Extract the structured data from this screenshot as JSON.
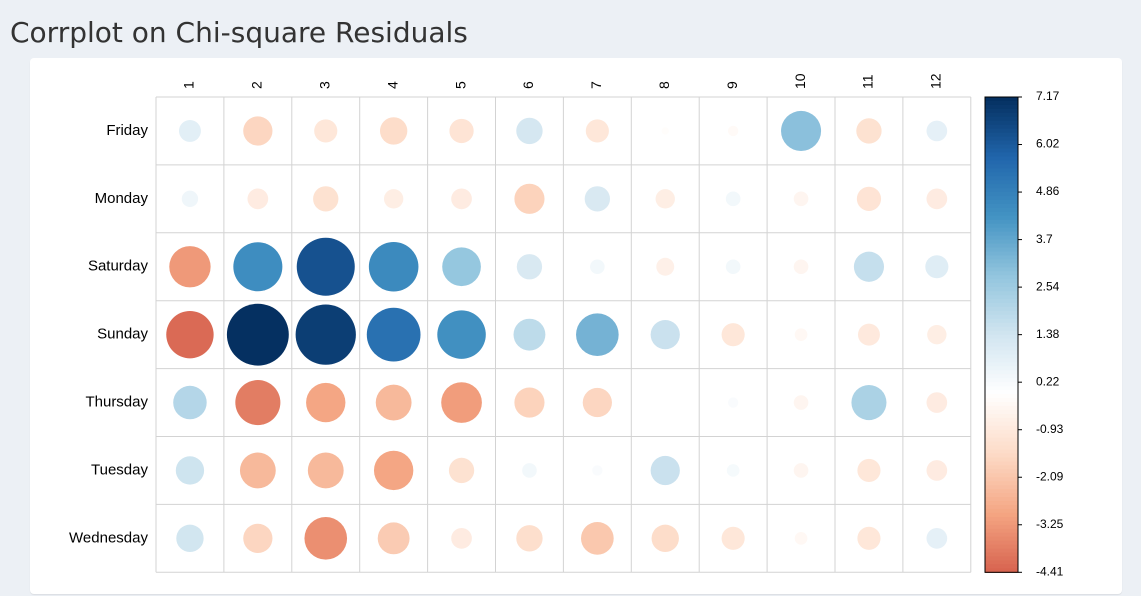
{
  "page": {
    "title": "Corrplot on Chi-square Residuals"
  },
  "chart_data": {
    "type": "heatmap",
    "title": "",
    "columns": [
      "1",
      "2",
      "3",
      "4",
      "5",
      "6",
      "7",
      "8",
      "9",
      "10",
      "11",
      "12"
    ],
    "rows": [
      "Friday",
      "Monday",
      "Saturday",
      "Sunday",
      "Thursday",
      "Tuesday",
      "Wednesday"
    ],
    "values": [
      [
        0.9,
        -1.6,
        -1.0,
        -1.4,
        -1.1,
        1.3,
        -1.0,
        -0.1,
        -0.2,
        3.0,
        -1.2,
        0.8
      ],
      [
        0.5,
        -0.8,
        -1.2,
        -0.7,
        -0.8,
        -1.7,
        1.2,
        -0.7,
        0.4,
        -0.4,
        -1.1,
        -0.8
      ],
      [
        -3.2,
        4.5,
        6.3,
        4.6,
        2.8,
        1.2,
        0.4,
        -0.6,
        0.4,
        -0.4,
        1.7,
        1.0
      ],
      [
        -4.2,
        7.17,
        6.8,
        5.4,
        4.4,
        1.9,
        3.4,
        1.6,
        -1.0,
        -0.3,
        -0.9,
        -0.7
      ],
      [
        2.1,
        -3.8,
        -2.9,
        -2.4,
        -3.1,
        -1.7,
        -1.6,
        0.0,
        0.2,
        -0.4,
        2.3,
        -0.8
      ],
      [
        1.5,
        -2.4,
        -2.4,
        -2.9,
        -1.2,
        0.4,
        0.2,
        1.6,
        0.3,
        -0.4,
        -1.0,
        -0.8
      ],
      [
        1.4,
        -1.6,
        -3.4,
        -1.9,
        -0.8,
        -1.3,
        -2.0,
        -1.4,
        -1.0,
        -0.3,
        -1.0,
        0.8
      ]
    ],
    "color_scale": {
      "min": -4.41,
      "max": 7.17,
      "mid": 0,
      "ticks": [
        "7.17",
        "6.02",
        "4.86",
        "3.7",
        "2.54",
        "1.38",
        "0.22",
        "-0.93",
        "-2.09",
        "-3.25",
        "-4.41"
      ],
      "low_color": "#d6604d",
      "mid_color": "#ffffff",
      "high_color": "#053061"
    },
    "grid": true,
    "legend": "right",
    "colors": {
      "background": "#ecf0f5",
      "panel": "#ffffff",
      "grid": "#d3d3d3"
    }
  }
}
